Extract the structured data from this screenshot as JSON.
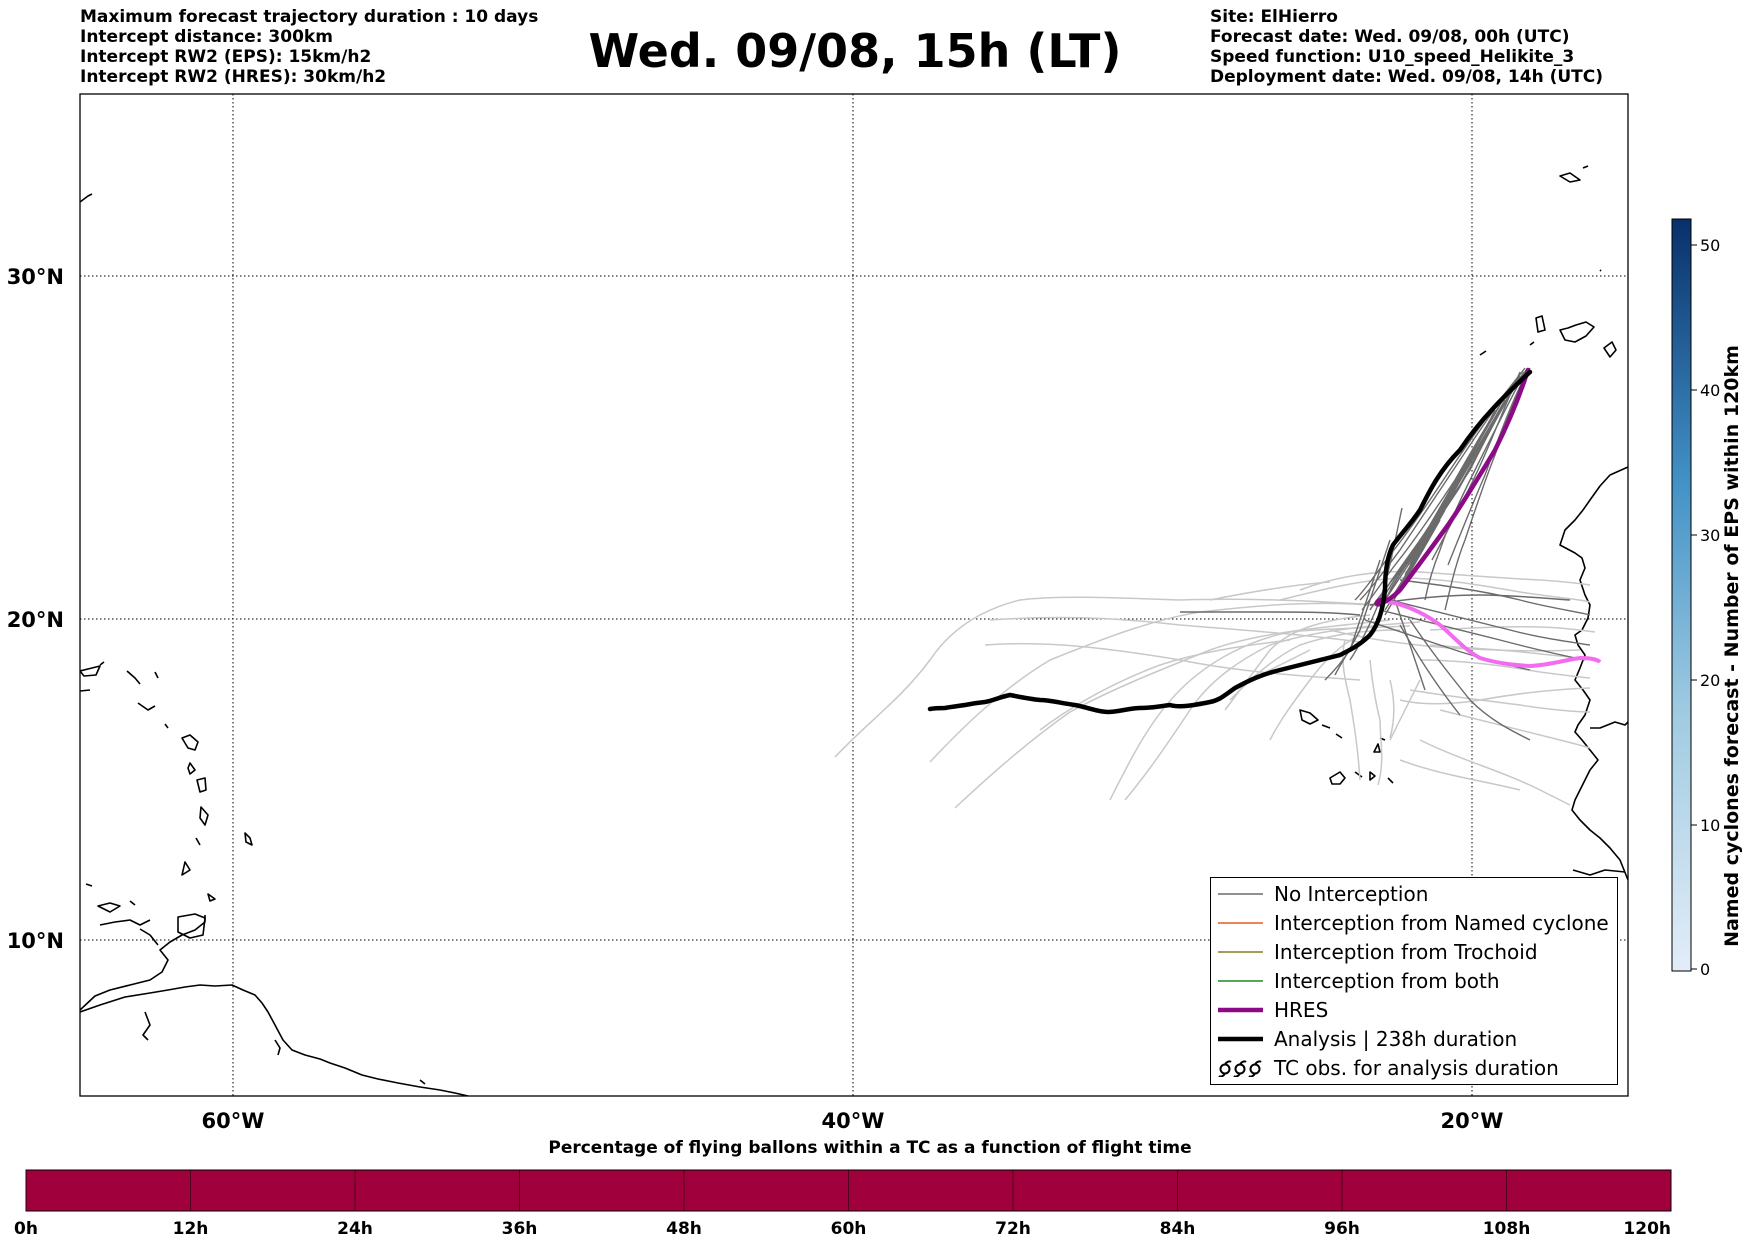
{
  "header": {
    "left_lines": [
      "Maximum forecast trajectory duration : 10 days",
      "Intercept distance: 300km",
      "Intercept RW2 (EPS):  15km/h2",
      "Intercept RW2 (HRES): 30km/h2"
    ],
    "title": "Wed. 09/08, 15h (LT)",
    "right_lines": [
      "Site: ElHierro",
      "Forecast date: Wed. 09/08, 00h (UTC)",
      "Speed function: U10_speed_Helikite_3",
      "Deployment date: Wed. 09/08, 14h (UTC)"
    ]
  },
  "map": {
    "lon_labels": [
      "60°W",
      "40°W",
      "20°W"
    ],
    "lat_labels": [
      "30°N",
      "20°N",
      "10°N"
    ],
    "colors": {
      "eps_no_interception": "#6b6b6b",
      "eps_faint": "#c8c8c8",
      "hres": "#8b0a86",
      "hres_pink": "#f36cf0",
      "analysis": "#000000"
    }
  },
  "legend": {
    "items": [
      {
        "label": "No Interception",
        "color": "#6b6b6b",
        "style": "thin"
      },
      {
        "label": "Interception from Named cyclone",
        "color": "#e85a1e",
        "style": "thin"
      },
      {
        "label": "Interception from Trochoid",
        "color": "#808020",
        "style": "thin"
      },
      {
        "label": "Interception from both",
        "color": "#1f8a1f",
        "style": "thin"
      },
      {
        "label": "HRES",
        "color": "#8b0a86",
        "style": "thick"
      },
      {
        "label": "Analysis | 238h duration",
        "color": "#000000",
        "style": "thick"
      },
      {
        "label": "TC obs. for analysis duration",
        "color": "#000000",
        "style": "tc-symbol"
      }
    ]
  },
  "colorbar": {
    "title": "Named cyclones forecast - Number of EPS within 120km",
    "ticks": [
      "0",
      "10",
      "20",
      "30",
      "40",
      "50"
    ],
    "min_color": "#e3edf8",
    "max_color": "#08306b"
  },
  "bottom_bar": {
    "title": "Percentage of flying ballons within a TC as a function of flight time",
    "ticks": [
      "0h",
      "12h",
      "24h",
      "36h",
      "48h",
      "60h",
      "72h",
      "84h",
      "96h",
      "108h",
      "120h"
    ],
    "color": "#a0003c"
  }
}
